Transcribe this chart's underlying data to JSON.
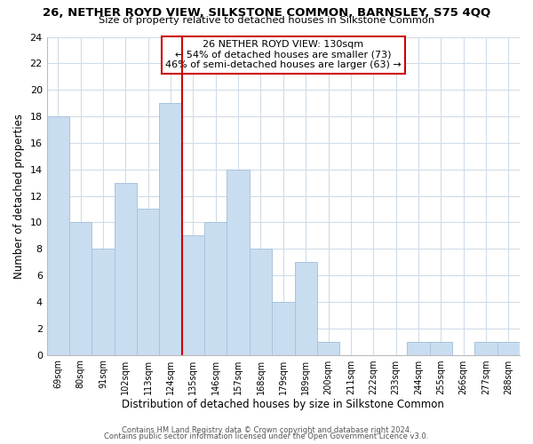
{
  "title": "26, NETHER ROYD VIEW, SILKSTONE COMMON, BARNSLEY, S75 4QQ",
  "subtitle": "Size of property relative to detached houses in Silkstone Common",
  "xlabel": "Distribution of detached houses by size in Silkstone Common",
  "ylabel": "Number of detached properties",
  "bin_labels": [
    "69sqm",
    "80sqm",
    "91sqm",
    "102sqm",
    "113sqm",
    "124sqm",
    "135sqm",
    "146sqm",
    "157sqm",
    "168sqm",
    "179sqm",
    "189sqm",
    "200sqm",
    "211sqm",
    "222sqm",
    "233sqm",
    "244sqm",
    "255sqm",
    "266sqm",
    "277sqm",
    "288sqm"
  ],
  "bar_heights": [
    18,
    10,
    8,
    13,
    11,
    19,
    9,
    10,
    14,
    8,
    4,
    7,
    1,
    0,
    0,
    0,
    1,
    1,
    0,
    1,
    1
  ],
  "bar_color": "#c9ddf0",
  "bar_edge_color": "#a8c4dd",
  "vline_x": 6.0,
  "vline_color": "#cc0000",
  "annotation_title": "26 NETHER ROYD VIEW: 130sqm",
  "annotation_line1": "← 54% of detached houses are smaller (73)",
  "annotation_line2": "46% of semi-detached houses are larger (63) →",
  "annotation_box_color": "#ffffff",
  "annotation_box_edge_color": "#cc0000",
  "ylim": [
    0,
    24
  ],
  "yticks": [
    0,
    2,
    4,
    6,
    8,
    10,
    12,
    14,
    16,
    18,
    20,
    22,
    24
  ],
  "footer1": "Contains HM Land Registry data © Crown copyright and database right 2024.",
  "footer2": "Contains public sector information licensed under the Open Government Licence v3.0.",
  "background_color": "#ffffff",
  "grid_color": "#d0dce8"
}
